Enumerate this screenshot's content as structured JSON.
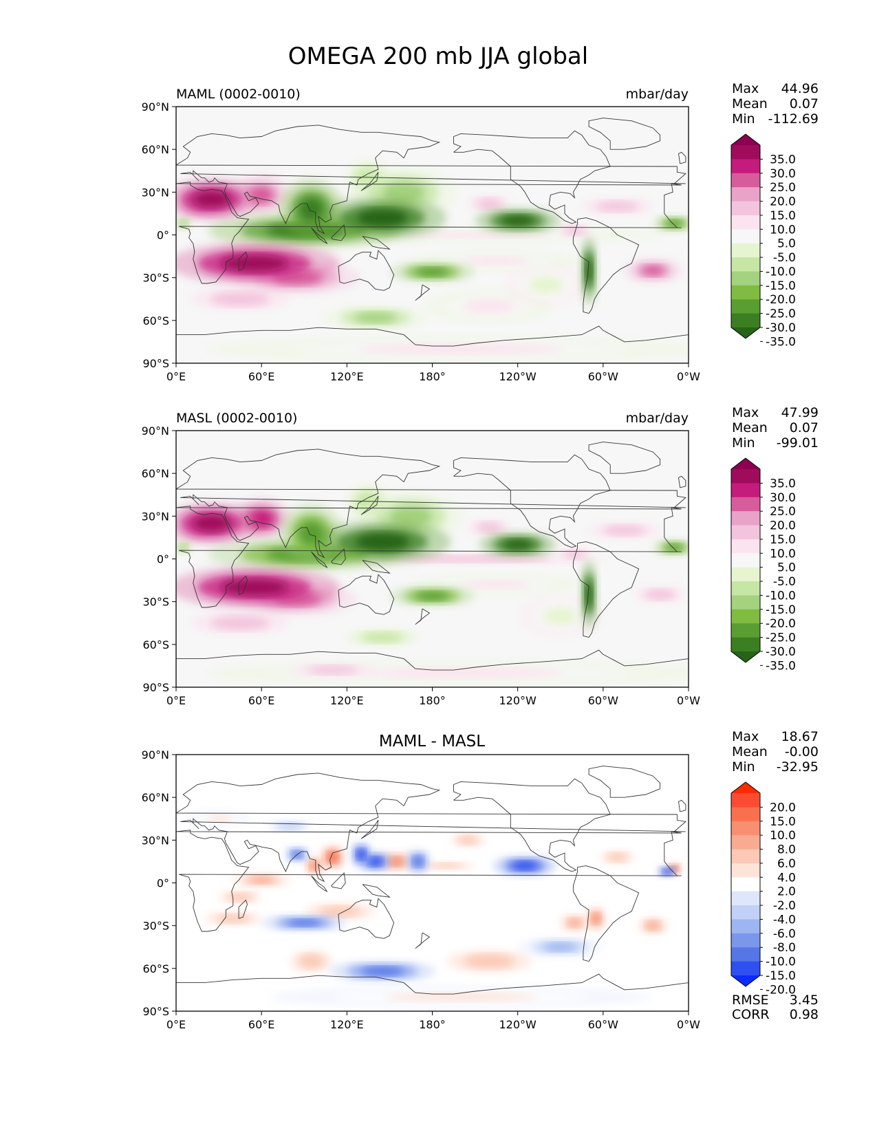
{
  "title": "OMEGA 200 mb JJA global",
  "lat_ticks": [
    "90°N",
    "60°N",
    "30°N",
    "0°",
    "30°S",
    "60°S",
    "90°S"
  ],
  "lon_ticks": [
    "0°E",
    "60°E",
    "120°E",
    "180°",
    "120°W",
    "60°W",
    "0°W"
  ],
  "panels": [
    {
      "id": "maml",
      "left_title": "MAML (0002-0010)",
      "center_title": "",
      "right_title": "mbar/day",
      "stats": [
        {
          "label": "Max",
          "value": "44.96"
        },
        {
          "label": "Mean",
          "value": "0.07"
        },
        {
          "label": "Min",
          "value": "-112.69"
        }
      ],
      "colorbar": {
        "labels": [
          "35.0",
          "30.0",
          "25.0",
          "20.0",
          "15.0",
          "10.0",
          "5.0",
          "-5.0",
          "-10.0",
          "-15.0",
          "-20.0",
          "-25.0",
          "-30.0",
          "-35.0"
        ],
        "colors": [
          "#8e0152",
          "#9f0c5c",
          "#c51b7d",
          "#d75c9b",
          "#e9a3c9",
          "#f3c4dd",
          "#fbe4ef",
          "#f7f7f7",
          "#e6f5d0",
          "#c6e6a4",
          "#a4d27f",
          "#7fbc41",
          "#5a9e32",
          "#3b7f22",
          "#276419"
        ]
      },
      "blobs": [
        {
          "lon": 25,
          "lat": 25,
          "rx": 22,
          "ry": 10,
          "v": 35
        },
        {
          "lon": 60,
          "lat": 28,
          "rx": 14,
          "ry": 10,
          "v": 25
        },
        {
          "lon": 55,
          "lat": -20,
          "rx": 40,
          "ry": 10,
          "v": 35
        },
        {
          "lon": 85,
          "lat": -30,
          "rx": 30,
          "ry": 8,
          "v": 25
        },
        {
          "lon": 45,
          "lat": -45,
          "rx": 35,
          "ry": 8,
          "v": 12
        },
        {
          "lon": 15,
          "lat": 20,
          "rx": 15,
          "ry": 8,
          "v": 15
        },
        {
          "lon": 90,
          "lat": 3,
          "rx": 45,
          "ry": 8,
          "v": -30
        },
        {
          "lon": 95,
          "lat": 18,
          "rx": 15,
          "ry": 14,
          "v": -30
        },
        {
          "lon": 145,
          "lat": 12,
          "rx": 30,
          "ry": 10,
          "v": -35
        },
        {
          "lon": 160,
          "lat": 30,
          "rx": 25,
          "ry": 12,
          "v": -18
        },
        {
          "lon": 135,
          "lat": 40,
          "rx": 15,
          "ry": 12,
          "v": -10
        },
        {
          "lon": 240,
          "lat": 10,
          "rx": 20,
          "ry": 6,
          "v": -35
        },
        {
          "lon": 180,
          "lat": -26,
          "rx": 20,
          "ry": 5,
          "v": -25
        },
        {
          "lon": 140,
          "lat": -58,
          "rx": 25,
          "ry": 6,
          "v": -15
        },
        {
          "lon": 290,
          "lat": -25,
          "rx": 4,
          "ry": 16,
          "v": -35
        },
        {
          "lon": 350,
          "lat": 8,
          "rx": 10,
          "ry": 4,
          "v": -25
        },
        {
          "lon": 5,
          "lat": 8,
          "rx": 5,
          "ry": 4,
          "v": -15
        },
        {
          "lon": 210,
          "lat": 0,
          "rx": 90,
          "ry": 4,
          "v": 10
        },
        {
          "lon": 225,
          "lat": -18,
          "rx": 40,
          "ry": 5,
          "v": 8
        },
        {
          "lon": 335,
          "lat": -25,
          "rx": 14,
          "ry": 6,
          "v": 25
        },
        {
          "lon": 220,
          "lat": 22,
          "rx": 15,
          "ry": 6,
          "v": 12
        },
        {
          "lon": 310,
          "lat": 20,
          "rx": 25,
          "ry": 6,
          "v": 12
        },
        {
          "lon": 280,
          "lat": 3,
          "rx": 12,
          "ry": 5,
          "v": 15
        },
        {
          "lon": 200,
          "lat": -80,
          "rx": 120,
          "ry": 6,
          "v": 8
        },
        {
          "lon": 220,
          "lat": -50,
          "rx": 30,
          "ry": 8,
          "v": 6
        },
        {
          "lon": 260,
          "lat": -35,
          "rx": 20,
          "ry": 10,
          "v": -7
        }
      ]
    },
    {
      "id": "masl",
      "left_title": "MASL (0002-0010)",
      "center_title": "",
      "right_title": "mbar/day",
      "stats": [
        {
          "label": "Max",
          "value": "47.99"
        },
        {
          "label": "Mean",
          "value": "0.07"
        },
        {
          "label": "Min",
          "value": "-99.01"
        }
      ],
      "colorbar": {
        "labels": [
          "35.0",
          "30.0",
          "25.0",
          "20.0",
          "15.0",
          "10.0",
          "5.0",
          "-5.0",
          "-10.0",
          "-15.0",
          "-20.0",
          "-25.0",
          "-30.0",
          "-35.0"
        ],
        "colors": [
          "#8e0152",
          "#9f0c5c",
          "#c51b7d",
          "#d75c9b",
          "#e9a3c9",
          "#f3c4dd",
          "#fbe4ef",
          "#f7f7f7",
          "#e6f5d0",
          "#c6e6a4",
          "#a4d27f",
          "#7fbc41",
          "#5a9e32",
          "#3b7f22",
          "#276419"
        ]
      },
      "blobs": [
        {
          "lon": 25,
          "lat": 25,
          "rx": 22,
          "ry": 10,
          "v": 35
        },
        {
          "lon": 60,
          "lat": 28,
          "rx": 14,
          "ry": 10,
          "v": 28
        },
        {
          "lon": 55,
          "lat": -20,
          "rx": 40,
          "ry": 10,
          "v": 35
        },
        {
          "lon": 85,
          "lat": -28,
          "rx": 28,
          "ry": 8,
          "v": 25
        },
        {
          "lon": 45,
          "lat": -45,
          "rx": 35,
          "ry": 8,
          "v": 12
        },
        {
          "lon": 15,
          "lat": 20,
          "rx": 15,
          "ry": 8,
          "v": 15
        },
        {
          "lon": 90,
          "lat": 3,
          "rx": 45,
          "ry": 8,
          "v": -28
        },
        {
          "lon": 95,
          "lat": 18,
          "rx": 15,
          "ry": 14,
          "v": -28
        },
        {
          "lon": 145,
          "lat": 12,
          "rx": 32,
          "ry": 10,
          "v": -35
        },
        {
          "lon": 165,
          "lat": 30,
          "rx": 25,
          "ry": 12,
          "v": -18
        },
        {
          "lon": 135,
          "lat": 40,
          "rx": 15,
          "ry": 12,
          "v": -10
        },
        {
          "lon": 240,
          "lat": 10,
          "rx": 18,
          "ry": 6,
          "v": -35
        },
        {
          "lon": 180,
          "lat": -26,
          "rx": 20,
          "ry": 5,
          "v": -25
        },
        {
          "lon": 145,
          "lat": -55,
          "rx": 25,
          "ry": 6,
          "v": -12
        },
        {
          "lon": 290,
          "lat": -25,
          "rx": 4,
          "ry": 16,
          "v": -35
        },
        {
          "lon": 350,
          "lat": 8,
          "rx": 10,
          "ry": 4,
          "v": -25
        },
        {
          "lon": 5,
          "lat": 8,
          "rx": 5,
          "ry": 4,
          "v": -15
        },
        {
          "lon": 210,
          "lat": 0,
          "rx": 90,
          "ry": 4,
          "v": 12
        },
        {
          "lon": 225,
          "lat": -18,
          "rx": 40,
          "ry": 5,
          "v": 8
        },
        {
          "lon": 340,
          "lat": -25,
          "rx": 18,
          "ry": 6,
          "v": 15
        },
        {
          "lon": 220,
          "lat": 22,
          "rx": 15,
          "ry": 6,
          "v": 15
        },
        {
          "lon": 315,
          "lat": 20,
          "rx": 25,
          "ry": 6,
          "v": 15
        },
        {
          "lon": 280,
          "lat": 3,
          "rx": 12,
          "ry": 5,
          "v": 15
        },
        {
          "lon": 200,
          "lat": -80,
          "rx": 120,
          "ry": 6,
          "v": 8
        },
        {
          "lon": 110,
          "lat": -78,
          "rx": 30,
          "ry": 5,
          "v": 12
        },
        {
          "lon": 270,
          "lat": -40,
          "rx": 20,
          "ry": 10,
          "v": -7
        }
      ]
    },
    {
      "id": "diff",
      "left_title": "",
      "center_title": "MAML - MASL",
      "right_title": "",
      "stats": [
        {
          "label": "Max",
          "value": "18.67"
        },
        {
          "label": "Mean",
          "value": "-0.00"
        },
        {
          "label": "Min",
          "value": "-32.95"
        }
      ],
      "extra_stats": [
        {
          "label": "RMSE",
          "value": "3.45"
        },
        {
          "label": "CORR",
          "value": "0.98"
        }
      ],
      "colorbar": {
        "labels": [
          "20.0",
          "15.0",
          "10.0",
          "8.0",
          "6.0",
          "4.0",
          "2.0",
          "-2.0",
          "-4.0",
          "-6.0",
          "-8.0",
          "-10.0",
          "-15.0",
          "-20.0"
        ],
        "colors": [
          "#ff2a00",
          "#fb4c33",
          "#f9704f",
          "#f88f70",
          "#f9ab92",
          "#fbc9b6",
          "#fde3d8",
          "#ffffff",
          "#dde6fb",
          "#c0d0f6",
          "#9db5f1",
          "#7a97ec",
          "#5676e8",
          "#2f4ff0",
          "#0a2cff"
        ]
      },
      "blobs": [
        {
          "lon": 110,
          "lat": 18,
          "rx": 6,
          "ry": 6,
          "v": 12
        },
        {
          "lon": 97,
          "lat": 12,
          "rx": 5,
          "ry": 5,
          "v": 10
        },
        {
          "lon": 140,
          "lat": 15,
          "rx": 8,
          "ry": 5,
          "v": -15
        },
        {
          "lon": 155,
          "lat": 15,
          "rx": 8,
          "ry": 5,
          "v": 9
        },
        {
          "lon": 170,
          "lat": 15,
          "rx": 6,
          "ry": 6,
          "v": -10
        },
        {
          "lon": 85,
          "lat": 20,
          "rx": 6,
          "ry": 4,
          "v": -12
        },
        {
          "lon": 130,
          "lat": 20,
          "rx": 5,
          "ry": 6,
          "v": -15
        },
        {
          "lon": 245,
          "lat": 12,
          "rx": 15,
          "ry": 5,
          "v": -15
        },
        {
          "lon": 190,
          "lat": 12,
          "rx": 20,
          "ry": 3,
          "v": 6
        },
        {
          "lon": 60,
          "lat": 2,
          "rx": 15,
          "ry": 4,
          "v": 8
        },
        {
          "lon": 45,
          "lat": -10,
          "rx": 15,
          "ry": 5,
          "v": 5
        },
        {
          "lon": 40,
          "lat": -25,
          "rx": 20,
          "ry": 5,
          "v": 6
        },
        {
          "lon": 90,
          "lat": -28,
          "rx": 20,
          "ry": 4,
          "v": -12
        },
        {
          "lon": 115,
          "lat": -20,
          "rx": 25,
          "ry": 6,
          "v": 5
        },
        {
          "lon": 145,
          "lat": -62,
          "rx": 25,
          "ry": 5,
          "v": -12
        },
        {
          "lon": 95,
          "lat": -55,
          "rx": 15,
          "ry": 8,
          "v": 5
        },
        {
          "lon": 220,
          "lat": -55,
          "rx": 30,
          "ry": 8,
          "v": 5
        },
        {
          "lon": 270,
          "lat": -45,
          "rx": 20,
          "ry": 5,
          "v": -6
        },
        {
          "lon": 295,
          "lat": -25,
          "rx": 5,
          "ry": 6,
          "v": 9
        },
        {
          "lon": 280,
          "lat": -28,
          "rx": 8,
          "ry": 5,
          "v": 7
        },
        {
          "lon": 205,
          "lat": 30,
          "rx": 12,
          "ry": 5,
          "v": 5
        },
        {
          "lon": 310,
          "lat": 18,
          "rx": 12,
          "ry": 5,
          "v": 6
        },
        {
          "lon": 345,
          "lat": 8,
          "rx": 5,
          "ry": 3,
          "v": -15
        },
        {
          "lon": 350,
          "lat": 10,
          "rx": 4,
          "ry": 3,
          "v": 12
        },
        {
          "lon": 335,
          "lat": -30,
          "rx": 8,
          "ry": 5,
          "v": 7
        },
        {
          "lon": 30,
          "lat": 45,
          "rx": 15,
          "ry": 4,
          "v": 4
        },
        {
          "lon": 80,
          "lat": 40,
          "rx": 15,
          "ry": 4,
          "v": -4
        },
        {
          "lon": 200,
          "lat": -80,
          "rx": 90,
          "ry": 5,
          "v": 3
        }
      ]
    }
  ]
}
